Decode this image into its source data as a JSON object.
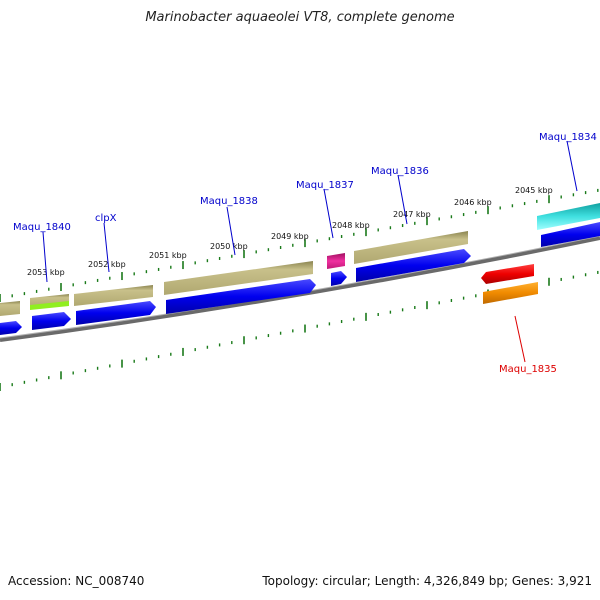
{
  "title": "Marinobacter aquaeolei VT8, complete genome",
  "accession": "Accession: NC_008740",
  "summary": "Topology: circular; Length: 4,326,849 bp; Genes: 3,921",
  "colors": {
    "backbone": "#808080",
    "tick": "#1a7a1a",
    "label_forward": "#0000cc",
    "label_reverse": "#dd0000",
    "cds_blue": "#0000ee",
    "cds_khaki": "#b8b07a",
    "magenta": "#e0208a",
    "cyan": "#20c8c8",
    "red": "#ee0000",
    "orange": "#f09000",
    "lime": "#90ee20"
  },
  "kbp_ticks": [
    "2053 kbp",
    "2052 kbp",
    "2051 kbp",
    "2050 kbp",
    "2049 kbp",
    "2048 kbp",
    "2047 kbp",
    "2046 kbp",
    "2045 kbp"
  ],
  "gene_labels": [
    {
      "text": "Maqu_1840",
      "strand": "forward"
    },
    {
      "text": "clpX",
      "strand": "forward"
    },
    {
      "text": "Maqu_1838",
      "strand": "forward"
    },
    {
      "text": "Maqu_1837",
      "strand": "forward"
    },
    {
      "text": "Maqu_1836",
      "strand": "forward"
    },
    {
      "text": "Maqu_1834",
      "strand": "forward"
    },
    {
      "text": "Maqu_1835",
      "strand": "reverse"
    }
  ]
}
